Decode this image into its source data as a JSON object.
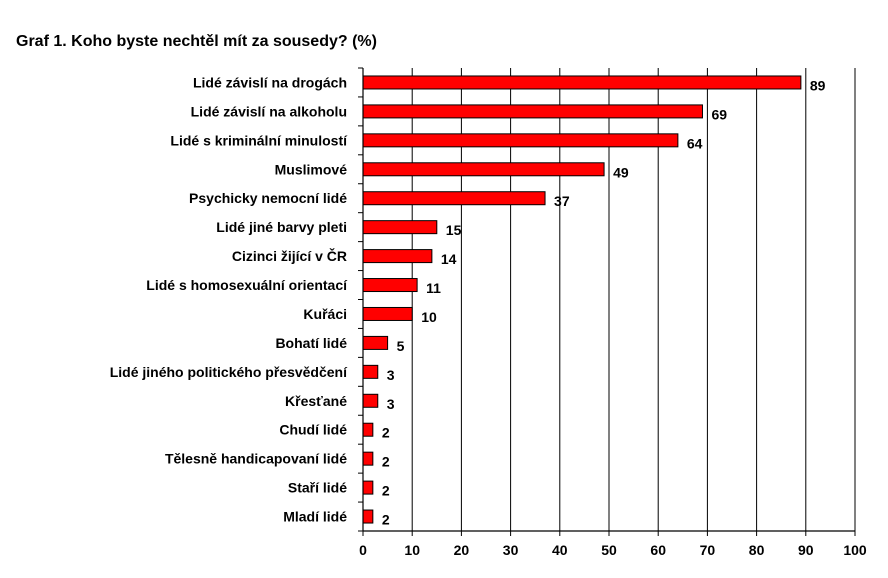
{
  "chart_data": {
    "type": "bar",
    "orientation": "horizontal",
    "title": "Graf 1. Koho byste nechtěl mít za sousedy? (%)",
    "categories": [
      "Lidé závislí na drogách",
      "Lidé závislí na alkoholu",
      "Lidé s kriminální minulostí",
      "Muslimové",
      "Psychicky nemocní lidé",
      "Lidé jiné barvy pleti",
      "Cizinci žijící v ČR",
      "Lidé s homosexuální orientací",
      "Kuřáci",
      "Bohatí lidé",
      "Lidé jiného politického přesvědčení",
      "Křesťané",
      "Chudí lidé",
      "Tělesně handicapovaní lidé",
      "Staří lidé",
      "Mladí lidé"
    ],
    "values": [
      89,
      69,
      64,
      49,
      37,
      15,
      14,
      11,
      10,
      5,
      3,
      3,
      2,
      2,
      2,
      2
    ],
    "xlim": [
      0,
      100
    ],
    "xticks": [
      0,
      10,
      20,
      30,
      40,
      50,
      60,
      70,
      80,
      90,
      100
    ],
    "grid": "vertical gridlines",
    "bar_color": "#ff0000",
    "bar_edge_color": "#000000",
    "show_value_labels": true
  }
}
